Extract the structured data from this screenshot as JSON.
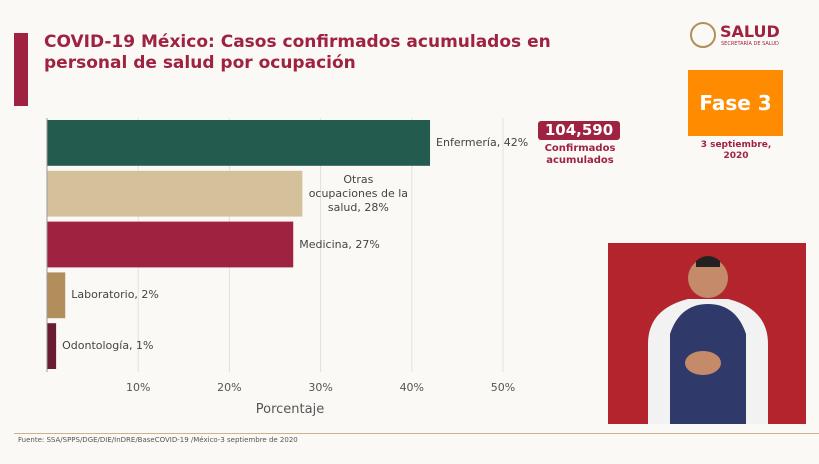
{
  "chart_data": {
    "type": "bar",
    "orientation": "horizontal",
    "title": "COVID-19 México: Casos confirmados acumulados en personal de salud por ocupación",
    "values": [
      42,
      28,
      27,
      2,
      1
    ],
    "value_labels": [
      "Enfermería, 42%",
      "Otras ocupaciones de la salud, 28%",
      "Medicina, 27%",
      "Laboratorio, 2%",
      "Odontología, 1%"
    ],
    "colors": [
      "#235b4e",
      "#d4c19c",
      "#9f2241",
      "#b38e5d",
      "#691c32"
    ],
    "xlim": [
      0,
      50
    ],
    "xticks": [
      {
        "value": 10,
        "label": "10%"
      },
      {
        "value": 20,
        "label": "20%"
      },
      {
        "value": 30,
        "label": "30%"
      },
      {
        "value": 40,
        "label": "40%"
      },
      {
        "value": 50,
        "label": "50%"
      }
    ],
    "xlabel": "Porcentaje",
    "grid": true
  },
  "total": {
    "value": "104,590",
    "label": "Confirmados acumulados"
  },
  "phase": {
    "label": "Fase 3",
    "date": "3 septiembre, 2020"
  },
  "logo": {
    "name": "SALUD",
    "subtitle": "SECRETARÍA DE SALUD"
  },
  "footer": "Fuente: SSA/SPPS/DGE/DIE/InDRE/BaseCOVID-19 /México-3 septiembre de 2020"
}
